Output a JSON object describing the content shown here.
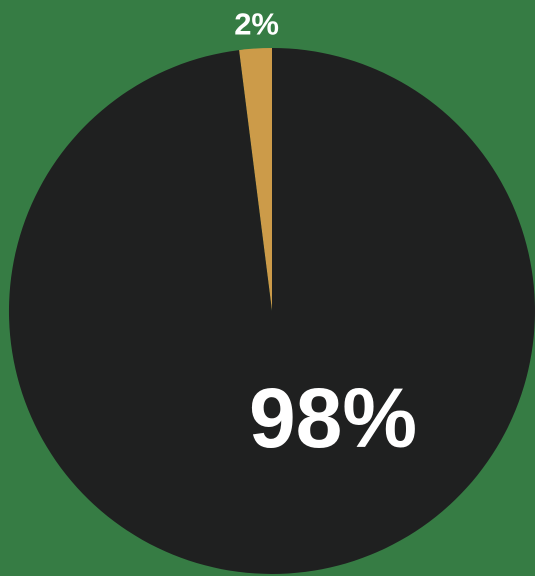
{
  "colors": {
    "background": "#367c44",
    "major_slice": "#1f2020",
    "minor_slice": "#cc9b49",
    "label_text": "#ffffff"
  },
  "chart_data": {
    "type": "pie",
    "title": "",
    "start_angle_deg": 0,
    "direction": "counter-clockwise",
    "slices": [
      {
        "label": "2%",
        "value": 2,
        "color": "#cc9b49",
        "label_position": "outside"
      },
      {
        "label": "98%",
        "value": 98,
        "color": "#1f2020",
        "label_position": "inside"
      }
    ]
  }
}
